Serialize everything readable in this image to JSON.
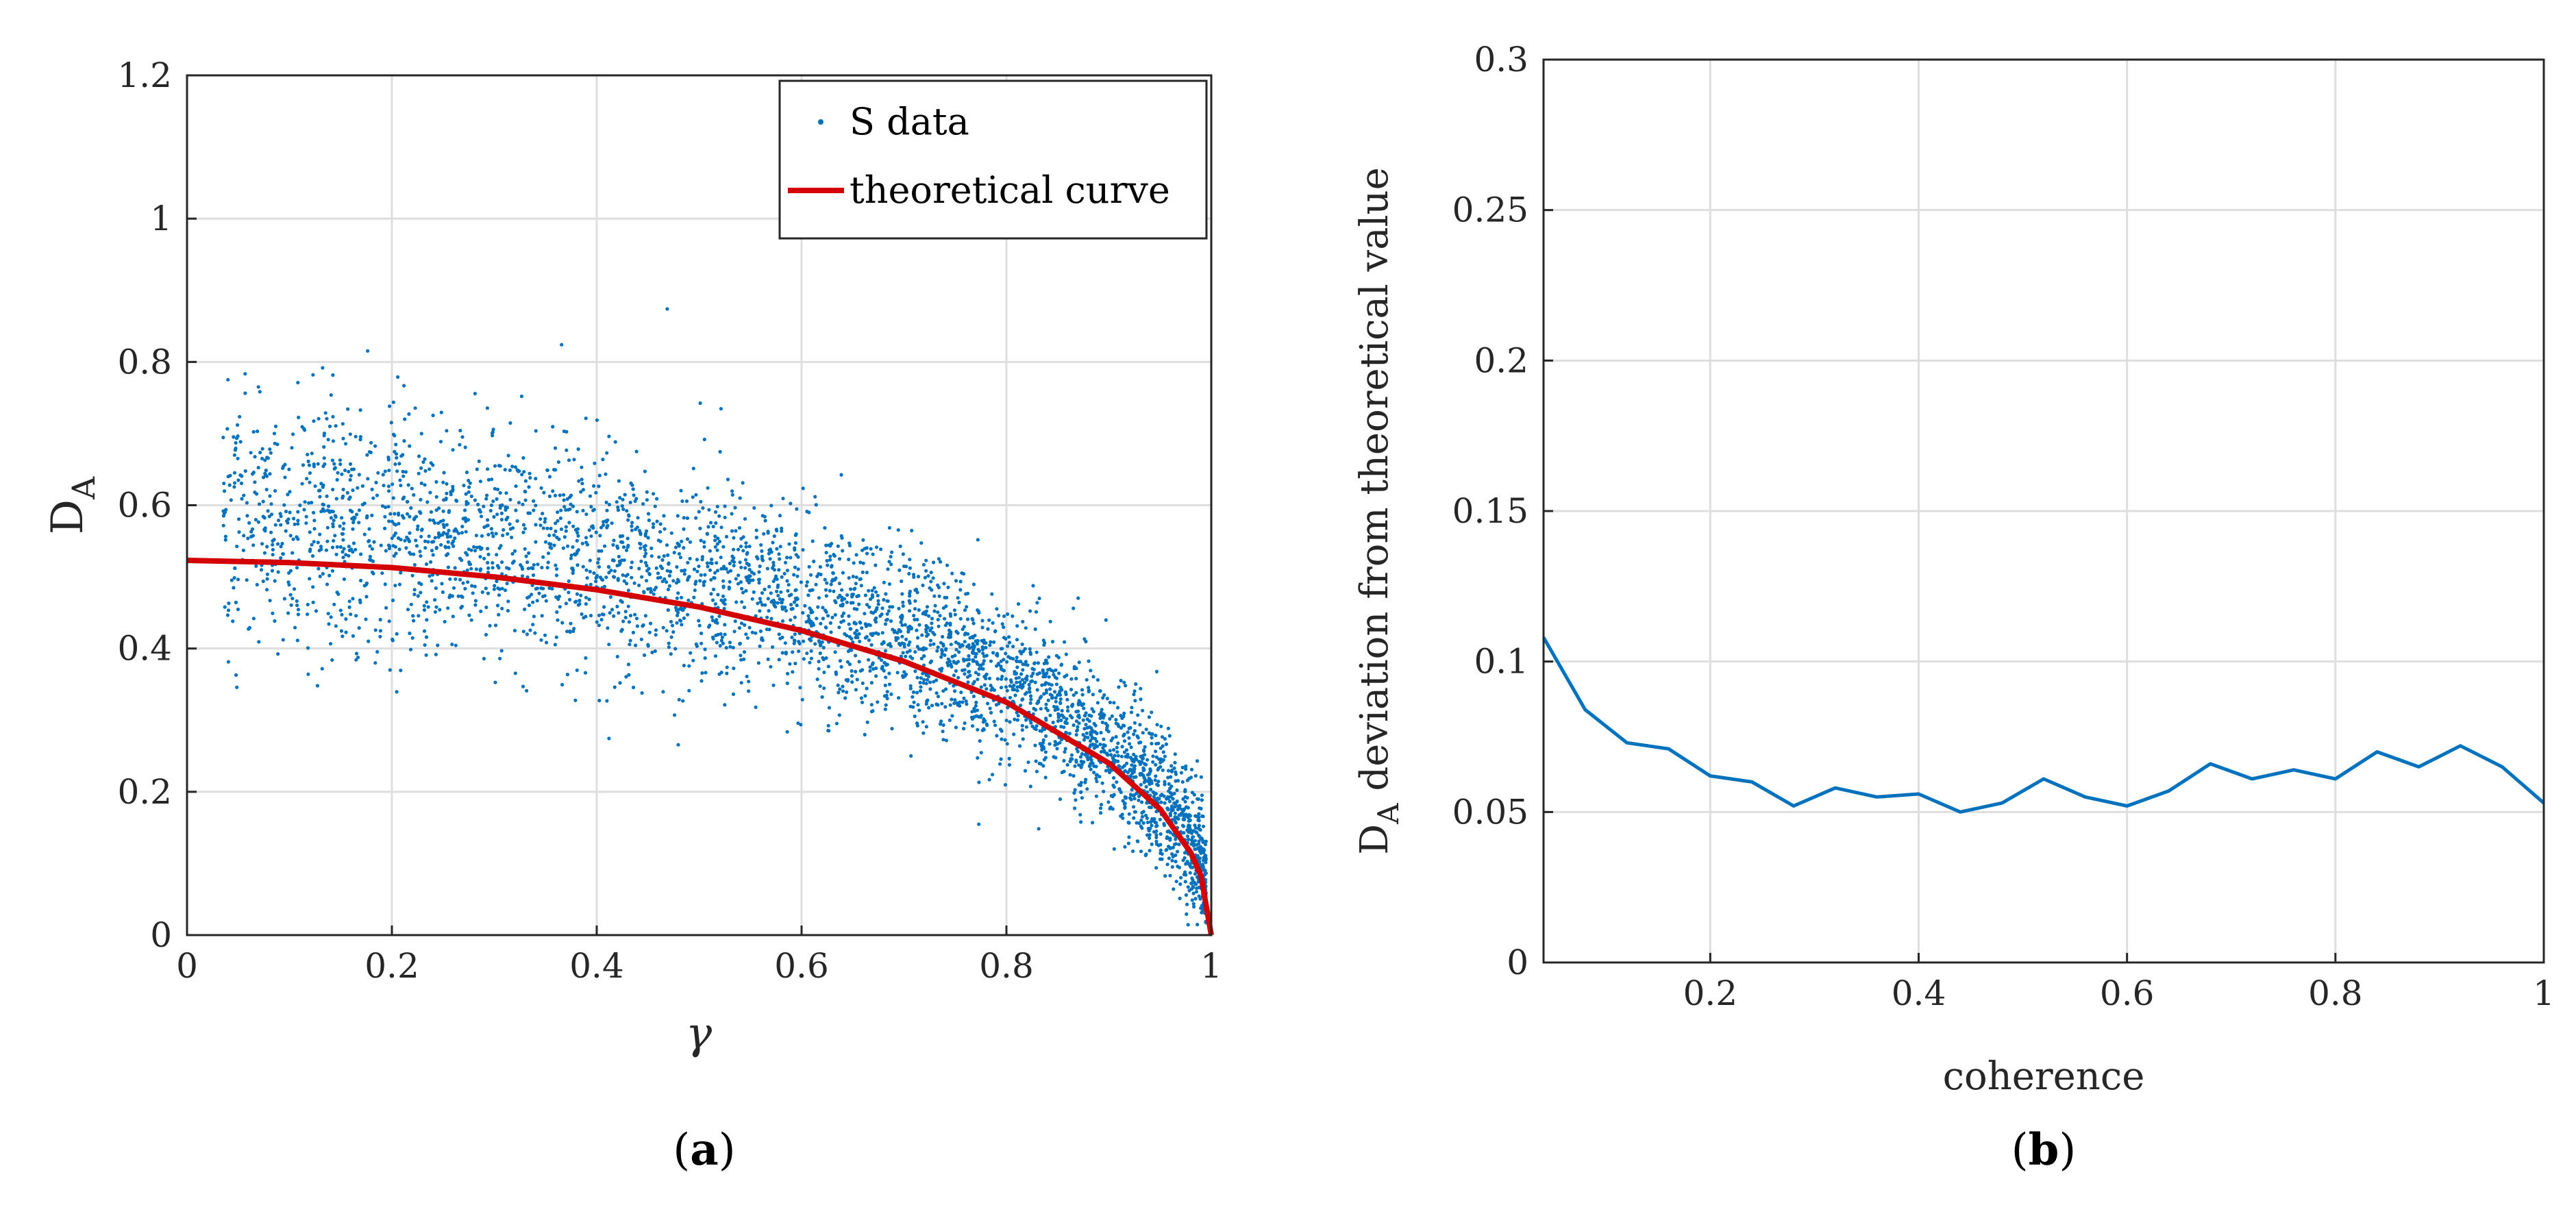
{
  "chart_data": [
    {
      "panel": "a",
      "type": "scatter",
      "caption_letter": "a",
      "xlabel": "γ",
      "ylabel_main": "D",
      "ylabel_sub": "A",
      "xlim": [
        0,
        1
      ],
      "ylim": [
        0,
        1.2
      ],
      "x_ticks": [
        0,
        0.2,
        0.4,
        0.6,
        0.8,
        1
      ],
      "x_tick_labels": [
        "0",
        "0.2",
        "0.4",
        "0.6",
        "0.8",
        "1"
      ],
      "y_ticks": [
        0,
        0.2,
        0.4,
        0.6,
        0.8,
        1,
        1.2
      ],
      "y_tick_labels": [
        "0",
        "0.2",
        "0.4",
        "0.6",
        "0.8",
        "1",
        "1.2"
      ],
      "grid": true,
      "legend_position": "top-right",
      "series": [
        {
          "name": "S data",
          "kind": "scatter",
          "color": "#0072BD",
          "point_count": 4000,
          "trend": "scatter lying slightly above the theoretical curve; spread widest at low γ (about 0.35–0.88) and narrowing to near 0 at γ = 1"
        },
        {
          "name": "theoretical curve",
          "kind": "line",
          "color": "#D40000",
          "x": [
            0,
            0.1,
            0.2,
            0.3,
            0.4,
            0.5,
            0.6,
            0.7,
            0.8,
            0.9,
            0.95,
            0.98,
            0.99,
            1.0
          ],
          "y": [
            0.523,
            0.52,
            0.513,
            0.5,
            0.482,
            0.458,
            0.425,
            0.382,
            0.325,
            0.24,
            0.176,
            0.115,
            0.083,
            0.0
          ]
        }
      ]
    },
    {
      "panel": "b",
      "type": "line",
      "caption_letter": "b",
      "xlabel": "coherence",
      "ylabel_main": "D",
      "ylabel_sub": "A",
      "ylabel_rest": " deviation from theoretical value",
      "xlim": [
        0.04,
        1
      ],
      "ylim": [
        0,
        0.3
      ],
      "x_ticks": [
        0.2,
        0.4,
        0.6,
        0.8,
        1
      ],
      "x_tick_labels": [
        "0.2",
        "0.4",
        "0.6",
        "0.8",
        "1"
      ],
      "y_ticks": [
        0,
        0.05,
        0.1,
        0.15,
        0.2,
        0.25,
        0.3
      ],
      "y_tick_labels": [
        "0",
        "0.05",
        "0.1",
        "0.15",
        "0.2",
        "0.25",
        "0.3"
      ],
      "grid": true,
      "series": [
        {
          "color": "#0072BD",
          "x": [
            0.04,
            0.08,
            0.12,
            0.16,
            0.2,
            0.24,
            0.28,
            0.32,
            0.36,
            0.4,
            0.44,
            0.48,
            0.52,
            0.56,
            0.6,
            0.64,
            0.68,
            0.72,
            0.76,
            0.8,
            0.84,
            0.88,
            0.92,
            0.96,
            1.0
          ],
          "y": [
            0.108,
            0.084,
            0.073,
            0.071,
            0.062,
            0.06,
            0.052,
            0.058,
            0.055,
            0.056,
            0.05,
            0.053,
            0.061,
            0.055,
            0.052,
            0.057,
            0.066,
            0.061,
            0.064,
            0.061,
            0.07,
            0.065,
            0.072,
            0.065,
            0.053
          ]
        }
      ]
    }
  ]
}
